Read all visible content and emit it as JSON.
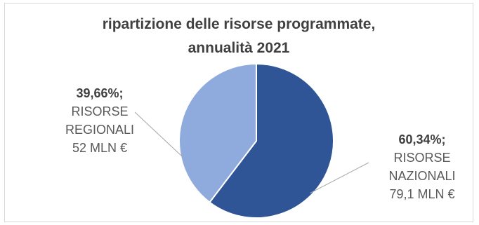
{
  "chart_data": {
    "type": "pie",
    "title_lines": [
      "ripartizione delle risorse programmate,",
      "annualità 2021"
    ],
    "slices": [
      {
        "name_lines": [
          "RISORSE",
          "NAZIONALI"
        ],
        "percent_label": "60,34%;",
        "amount_label": "79,1 MLN €",
        "value": 79.1,
        "percent": 60.34,
        "color": "#2f5597"
      },
      {
        "name_lines": [
          "RISORSE",
          "REGIONALI"
        ],
        "percent_label": "39,66%;",
        "amount_label": "52 MLN €",
        "value": 52,
        "percent": 39.66,
        "color": "#8faadc"
      }
    ],
    "start_angle_deg": 0,
    "direction": "clockwise",
    "legend": "none",
    "labels": "outside with leader lines"
  }
}
